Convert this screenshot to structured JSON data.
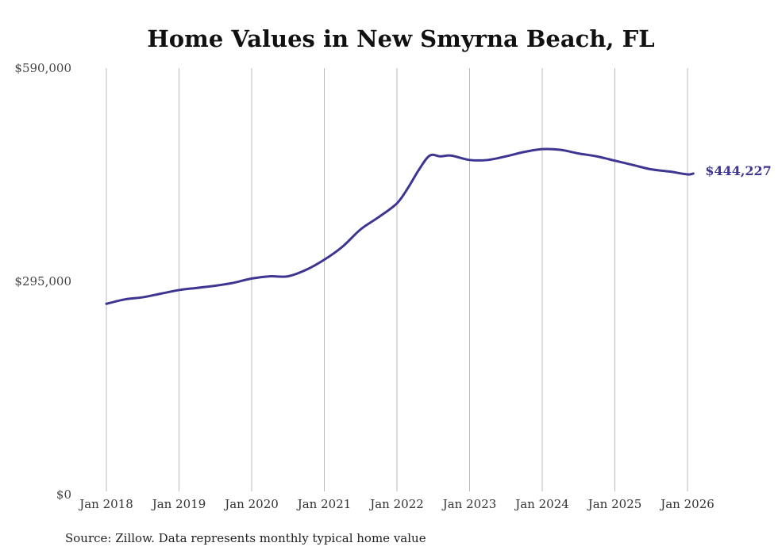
{
  "chart_data": {
    "type": "line",
    "title": "Home Values in New Smyrna Beach, FL",
    "xlabel": "",
    "ylabel": "",
    "ylim": [
      0,
      590000
    ],
    "yticks": [
      {
        "value": 0,
        "label": "$0"
      },
      {
        "value": 295000,
        "label": "$295,000"
      },
      {
        "value": 590000,
        "label": "$590,000"
      }
    ],
    "xticks": [
      {
        "value": 2018,
        "label": "Jan 2018"
      },
      {
        "value": 2019,
        "label": "Jan 2019"
      },
      {
        "value": 2020,
        "label": "Jan 2020"
      },
      {
        "value": 2021,
        "label": "Jan 2021"
      },
      {
        "value": 2022,
        "label": "Jan 2022"
      },
      {
        "value": 2023,
        "label": "Jan 2023"
      },
      {
        "value": 2024,
        "label": "Jan 2024"
      },
      {
        "value": 2025,
        "label": "Jan 2025"
      },
      {
        "value": 2026,
        "label": "Jan 2026"
      }
    ],
    "xlim": [
      2018,
      2026.1
    ],
    "grid": "vertical",
    "series": [
      {
        "name": "Typical home value",
        "color": "#3d3591",
        "x": [
          2018.0,
          2018.25,
          2018.5,
          2018.75,
          2019.0,
          2019.25,
          2019.5,
          2019.75,
          2020.0,
          2020.25,
          2020.5,
          2020.75,
          2021.0,
          2021.25,
          2021.5,
          2021.75,
          2022.0,
          2022.15,
          2022.3,
          2022.45,
          2022.6,
          2022.75,
          2023.0,
          2023.25,
          2023.5,
          2023.75,
          2024.0,
          2024.25,
          2024.5,
          2024.75,
          2025.0,
          2025.25,
          2025.5,
          2025.75,
          2026.0,
          2026.08
        ],
        "values": [
          264000,
          270000,
          273000,
          278000,
          283000,
          286000,
          289000,
          293000,
          299000,
          302000,
          302000,
          311000,
          325000,
          343000,
          367000,
          384000,
          403000,
          424000,
          449000,
          469000,
          468000,
          469000,
          463000,
          463000,
          468000,
          474000,
          478000,
          477000,
          472000,
          468000,
          462000,
          456000,
          450000,
          447000,
          443000,
          444227
        ]
      }
    ],
    "end_label": "$444,227",
    "source": "Source: Zillow. Data represents monthly typical home value"
  }
}
